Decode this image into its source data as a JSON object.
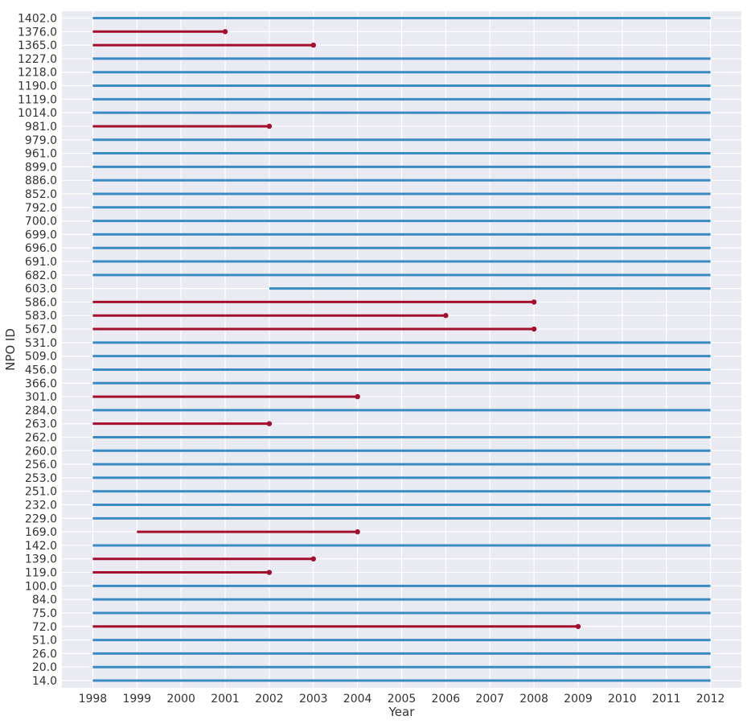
{
  "chart_data": {
    "type": "timeline",
    "title": "",
    "xlabel": "Year",
    "ylabel": "NPO ID",
    "xlim": [
      1997.3,
      2012.7
    ],
    "x_ticks": [
      "1998",
      "1999",
      "2000",
      "2001",
      "2002",
      "2003",
      "2004",
      "2005",
      "2006",
      "2007",
      "2008",
      "2009",
      "2010",
      "2011",
      "2012"
    ],
    "grid": true,
    "colors": {
      "active": "#3a8ac4",
      "ended": "#a50f2e",
      "background": "#eaeaf2",
      "grid": "#ffffff"
    },
    "series": [
      {
        "id": "1402.0",
        "start": 1998,
        "end": 2012,
        "status": "active"
      },
      {
        "id": "1376.0",
        "start": 1998,
        "end": 2001,
        "status": "ended"
      },
      {
        "id": "1365.0",
        "start": 1998,
        "end": 2003,
        "status": "ended"
      },
      {
        "id": "1227.0",
        "start": 1998,
        "end": 2012,
        "status": "active"
      },
      {
        "id": "1218.0",
        "start": 1998,
        "end": 2012,
        "status": "active"
      },
      {
        "id": "1190.0",
        "start": 1998,
        "end": 2012,
        "status": "active"
      },
      {
        "id": "1119.0",
        "start": 1998,
        "end": 2012,
        "status": "active"
      },
      {
        "id": "1014.0",
        "start": 1998,
        "end": 2012,
        "status": "active"
      },
      {
        "id": "981.0",
        "start": 1998,
        "end": 2002,
        "status": "ended"
      },
      {
        "id": "979.0",
        "start": 1998,
        "end": 2012,
        "status": "active"
      },
      {
        "id": "961.0",
        "start": 1998,
        "end": 2012,
        "status": "active"
      },
      {
        "id": "899.0",
        "start": 1998,
        "end": 2012,
        "status": "active"
      },
      {
        "id": "886.0",
        "start": 1998,
        "end": 2012,
        "status": "active"
      },
      {
        "id": "852.0",
        "start": 1998,
        "end": 2012,
        "status": "active"
      },
      {
        "id": "792.0",
        "start": 1998,
        "end": 2012,
        "status": "active"
      },
      {
        "id": "700.0",
        "start": 1998,
        "end": 2012,
        "status": "active"
      },
      {
        "id": "699.0",
        "start": 1998,
        "end": 2012,
        "status": "active"
      },
      {
        "id": "696.0",
        "start": 1998,
        "end": 2012,
        "status": "active"
      },
      {
        "id": "691.0",
        "start": 1998,
        "end": 2012,
        "status": "active"
      },
      {
        "id": "682.0",
        "start": 1998,
        "end": 2012,
        "status": "active"
      },
      {
        "id": "603.0",
        "start": 2002,
        "end": 2012,
        "status": "active"
      },
      {
        "id": "586.0",
        "start": 1998,
        "end": 2008,
        "status": "ended"
      },
      {
        "id": "583.0",
        "start": 1998,
        "end": 2006,
        "status": "ended"
      },
      {
        "id": "567.0",
        "start": 1998,
        "end": 2008,
        "status": "ended"
      },
      {
        "id": "531.0",
        "start": 1998,
        "end": 2012,
        "status": "active"
      },
      {
        "id": "509.0",
        "start": 1998,
        "end": 2012,
        "status": "active"
      },
      {
        "id": "456.0",
        "start": 1998,
        "end": 2012,
        "status": "active"
      },
      {
        "id": "366.0",
        "start": 1998,
        "end": 2012,
        "status": "active"
      },
      {
        "id": "301.0",
        "start": 1998,
        "end": 2004,
        "status": "ended"
      },
      {
        "id": "284.0",
        "start": 1998,
        "end": 2012,
        "status": "active"
      },
      {
        "id": "263.0",
        "start": 1998,
        "end": 2002,
        "status": "ended"
      },
      {
        "id": "262.0",
        "start": 1998,
        "end": 2012,
        "status": "active"
      },
      {
        "id": "260.0",
        "start": 1998,
        "end": 2012,
        "status": "active"
      },
      {
        "id": "256.0",
        "start": 1998,
        "end": 2012,
        "status": "active"
      },
      {
        "id": "253.0",
        "start": 1998,
        "end": 2012,
        "status": "active"
      },
      {
        "id": "251.0",
        "start": 1998,
        "end": 2012,
        "status": "active"
      },
      {
        "id": "232.0",
        "start": 1998,
        "end": 2012,
        "status": "active"
      },
      {
        "id": "229.0",
        "start": 1998,
        "end": 2012,
        "status": "active"
      },
      {
        "id": "169.0",
        "start": 1999,
        "end": 2004,
        "status": "ended"
      },
      {
        "id": "142.0",
        "start": 1998,
        "end": 2012,
        "status": "active"
      },
      {
        "id": "139.0",
        "start": 1998,
        "end": 2003,
        "status": "ended"
      },
      {
        "id": "119.0",
        "start": 1998,
        "end": 2002,
        "status": "ended"
      },
      {
        "id": "100.0",
        "start": 1998,
        "end": 2012,
        "status": "active"
      },
      {
        "id": "84.0",
        "start": 1998,
        "end": 2012,
        "status": "active"
      },
      {
        "id": "75.0",
        "start": 1998,
        "end": 2012,
        "status": "active"
      },
      {
        "id": "72.0",
        "start": 1998,
        "end": 2009,
        "status": "ended"
      },
      {
        "id": "51.0",
        "start": 1998,
        "end": 2012,
        "status": "active"
      },
      {
        "id": "26.0",
        "start": 1998,
        "end": 2012,
        "status": "active"
      },
      {
        "id": "20.0",
        "start": 1998,
        "end": 2012,
        "status": "active"
      },
      {
        "id": "14.0",
        "start": 1998,
        "end": 2012,
        "status": "active"
      }
    ]
  }
}
